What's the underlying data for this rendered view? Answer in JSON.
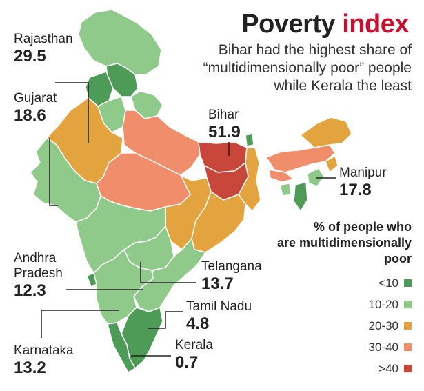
{
  "title": {
    "word1": "Poverty",
    "word2": "index"
  },
  "subtitle": "Bihar had the highest share of “multidimensionally poor” people while Kerala the least",
  "colors": {
    "lt10": "#4e9a57",
    "10to20": "#8fca8a",
    "20to30": "#e3a33e",
    "30to40": "#f08d6a",
    "gt40": "#c9473a",
    "border": "#ffffff"
  },
  "labels": {
    "rajasthan": {
      "name": "Rajasthan",
      "value": "29.5"
    },
    "gujarat": {
      "name": "Gujarat",
      "value": "18.6"
    },
    "bihar": {
      "name": "Bihar",
      "value": "51.9"
    },
    "manipur": {
      "name": "Manipur",
      "value": "17.8"
    },
    "andhra": {
      "name1": "Andhra",
      "name2": "Pradesh",
      "value": "12.3"
    },
    "telangana": {
      "name": "Telangana",
      "value": "13.7"
    },
    "tamilnadu": {
      "name": "Tamil Nadu",
      "value": "4.8"
    },
    "kerala": {
      "name": "Kerala",
      "value": "0.7"
    },
    "karnataka": {
      "name": "Karnataka",
      "value": "13.2"
    }
  },
  "legend": {
    "title1": "% of people who",
    "title2": "are multidimensionally",
    "title3": "poor",
    "items": [
      {
        "label": "<10",
        "color": "#4e9a57"
      },
      {
        "label": "10-20",
        "color": "#8fca8a"
      },
      {
        "label": "20-30",
        "color": "#e3a33e"
      },
      {
        "label": "30-40",
        "color": "#f08d6a"
      },
      {
        "label": ">40",
        "color": "#c9473a"
      }
    ]
  }
}
